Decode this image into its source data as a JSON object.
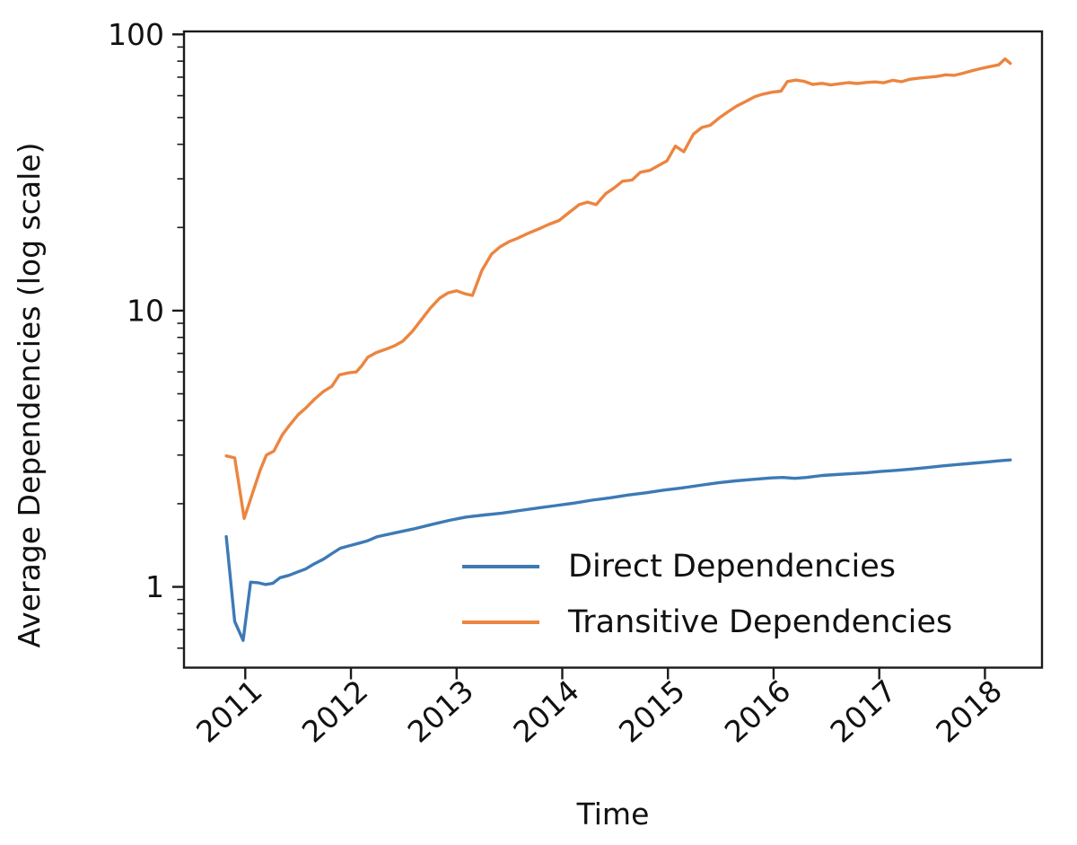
{
  "figure": {
    "background": "#ffffff",
    "text_color": "#111111",
    "spine_color": "#1a1a1a"
  },
  "chart_data": {
    "type": "line",
    "title": "",
    "xlabel": "Time",
    "ylabel": "Average Dependencies (log scale)",
    "y_scale": "log",
    "grid": false,
    "xlim": [
      2010.42,
      2018.54
    ],
    "ylim": [
      0.51,
      102.5
    ],
    "x_ticks": [
      {
        "value": 2011,
        "label": "2011"
      },
      {
        "value": 2012,
        "label": "2012"
      },
      {
        "value": 2013,
        "label": "2013"
      },
      {
        "value": 2014,
        "label": "2014"
      },
      {
        "value": 2015,
        "label": "2015"
      },
      {
        "value": 2016,
        "label": "2016"
      },
      {
        "value": 2017,
        "label": "2017"
      },
      {
        "value": 2018,
        "label": "2018"
      }
    ],
    "y_ticks": [
      {
        "value": 1,
        "label": "1"
      },
      {
        "value": 10,
        "label": "10"
      },
      {
        "value": 100,
        "label": "100"
      }
    ],
    "y_minor_ticks": [
      0.6,
      0.7,
      0.8,
      0.9,
      2,
      3,
      4,
      5,
      6,
      7,
      8,
      9,
      20,
      30,
      40,
      50,
      60,
      70,
      80,
      90
    ],
    "legend": {
      "position": "lower right",
      "frame": false
    },
    "series": [
      {
        "name": "Direct Dependencies",
        "color": "#3d7ab5",
        "points": [
          [
            2010.82,
            1.52
          ],
          [
            2010.9,
            0.75
          ],
          [
            2010.98,
            0.64
          ],
          [
            2011.05,
            1.04
          ],
          [
            2011.12,
            1.035
          ],
          [
            2011.19,
            1.02
          ],
          [
            2011.26,
            1.03
          ],
          [
            2011.33,
            1.08
          ],
          [
            2011.41,
            1.1
          ],
          [
            2011.49,
            1.13
          ],
          [
            2011.57,
            1.16
          ],
          [
            2011.65,
            1.21
          ],
          [
            2011.74,
            1.26
          ],
          [
            2011.82,
            1.32
          ],
          [
            2011.9,
            1.38
          ],
          [
            2011.99,
            1.41
          ],
          [
            2012.08,
            1.44
          ],
          [
            2012.16,
            1.47
          ],
          [
            2012.25,
            1.52
          ],
          [
            2012.42,
            1.57
          ],
          [
            2012.59,
            1.62
          ],
          [
            2012.76,
            1.68
          ],
          [
            2012.93,
            1.74
          ],
          [
            2013.09,
            1.79
          ],
          [
            2013.26,
            1.82
          ],
          [
            2013.43,
            1.85
          ],
          [
            2013.6,
            1.89
          ],
          [
            2013.77,
            1.93
          ],
          [
            2013.94,
            1.97
          ],
          [
            2014.11,
            2.01
          ],
          [
            2014.28,
            2.06
          ],
          [
            2014.45,
            2.1
          ],
          [
            2014.62,
            2.15
          ],
          [
            2014.79,
            2.19
          ],
          [
            2014.96,
            2.24
          ],
          [
            2015.13,
            2.28
          ],
          [
            2015.3,
            2.33
          ],
          [
            2015.47,
            2.38
          ],
          [
            2015.64,
            2.42
          ],
          [
            2015.81,
            2.45
          ],
          [
            2015.98,
            2.48
          ],
          [
            2016.09,
            2.49
          ],
          [
            2016.2,
            2.47
          ],
          [
            2016.31,
            2.49
          ],
          [
            2016.46,
            2.53
          ],
          [
            2016.59,
            2.55
          ],
          [
            2016.74,
            2.57
          ],
          [
            2016.88,
            2.59
          ],
          [
            2017.02,
            2.62
          ],
          [
            2017.16,
            2.64
          ],
          [
            2017.31,
            2.67
          ],
          [
            2017.44,
            2.7
          ],
          [
            2017.59,
            2.74
          ],
          [
            2017.73,
            2.77
          ],
          [
            2017.87,
            2.8
          ],
          [
            2018.01,
            2.83
          ],
          [
            2018.13,
            2.86
          ],
          [
            2018.24,
            2.88
          ]
        ]
      },
      {
        "name": "Transitive Dependencies",
        "color": "#ec8540",
        "points": [
          [
            2010.82,
            2.98
          ],
          [
            2010.9,
            2.93
          ],
          [
            2010.99,
            1.77
          ],
          [
            2011.08,
            2.25
          ],
          [
            2011.14,
            2.64
          ],
          [
            2011.2,
            3.0
          ],
          [
            2011.27,
            3.1
          ],
          [
            2011.35,
            3.55
          ],
          [
            2011.42,
            3.85
          ],
          [
            2011.5,
            4.2
          ],
          [
            2011.57,
            4.43
          ],
          [
            2011.66,
            4.8
          ],
          [
            2011.74,
            5.1
          ],
          [
            2011.82,
            5.32
          ],
          [
            2011.89,
            5.85
          ],
          [
            2011.97,
            5.95
          ],
          [
            2012.05,
            6.0
          ],
          [
            2012.1,
            6.3
          ],
          [
            2012.16,
            6.78
          ],
          [
            2012.24,
            7.05
          ],
          [
            2012.33,
            7.25
          ],
          [
            2012.41,
            7.45
          ],
          [
            2012.49,
            7.75
          ],
          [
            2012.58,
            8.4
          ],
          [
            2012.66,
            9.2
          ],
          [
            2012.75,
            10.2
          ],
          [
            2012.84,
            11.1
          ],
          [
            2012.92,
            11.6
          ],
          [
            2013.0,
            11.8
          ],
          [
            2013.08,
            11.5
          ],
          [
            2013.15,
            11.35
          ],
          [
            2013.24,
            14.0
          ],
          [
            2013.33,
            16.0
          ],
          [
            2013.41,
            17.0
          ],
          [
            2013.5,
            17.8
          ],
          [
            2013.58,
            18.3
          ],
          [
            2013.67,
            19.0
          ],
          [
            2013.77,
            19.7
          ],
          [
            2013.87,
            20.5
          ],
          [
            2013.97,
            21.2
          ],
          [
            2014.06,
            22.6
          ],
          [
            2014.16,
            24.2
          ],
          [
            2014.24,
            24.7
          ],
          [
            2014.32,
            24.2
          ],
          [
            2014.41,
            26.5
          ],
          [
            2014.49,
            27.8
          ],
          [
            2014.57,
            29.4
          ],
          [
            2014.66,
            29.7
          ],
          [
            2014.74,
            31.7
          ],
          [
            2014.83,
            32.2
          ],
          [
            2014.91,
            33.5
          ],
          [
            2014.99,
            34.8
          ],
          [
            2015.07,
            39.4
          ],
          [
            2015.15,
            37.6
          ],
          [
            2015.24,
            43.5
          ],
          [
            2015.32,
            46.0
          ],
          [
            2015.4,
            46.9
          ],
          [
            2015.49,
            50.0
          ],
          [
            2015.57,
            52.5
          ],
          [
            2015.65,
            55.0
          ],
          [
            2015.73,
            57.0
          ],
          [
            2015.82,
            59.5
          ],
          [
            2015.9,
            60.8
          ],
          [
            2015.99,
            61.8
          ],
          [
            2016.07,
            62.3
          ],
          [
            2016.13,
            67.5
          ],
          [
            2016.21,
            68.3
          ],
          [
            2016.29,
            67.6
          ],
          [
            2016.37,
            65.9
          ],
          [
            2016.46,
            66.5
          ],
          [
            2016.54,
            65.6
          ],
          [
            2016.63,
            66.3
          ],
          [
            2016.71,
            66.9
          ],
          [
            2016.79,
            66.4
          ],
          [
            2016.88,
            67.0
          ],
          [
            2016.96,
            67.3
          ],
          [
            2017.04,
            66.8
          ],
          [
            2017.13,
            68.2
          ],
          [
            2017.21,
            67.4
          ],
          [
            2017.29,
            68.8
          ],
          [
            2017.38,
            69.5
          ],
          [
            2017.46,
            69.9
          ],
          [
            2017.54,
            70.4
          ],
          [
            2017.63,
            71.4
          ],
          [
            2017.71,
            71.1
          ],
          [
            2017.79,
            72.3
          ],
          [
            2017.88,
            73.9
          ],
          [
            2017.96,
            75.2
          ],
          [
            2018.04,
            76.4
          ],
          [
            2018.13,
            77.6
          ],
          [
            2018.19,
            81.5
          ],
          [
            2018.24,
            78.5
          ]
        ]
      }
    ]
  }
}
